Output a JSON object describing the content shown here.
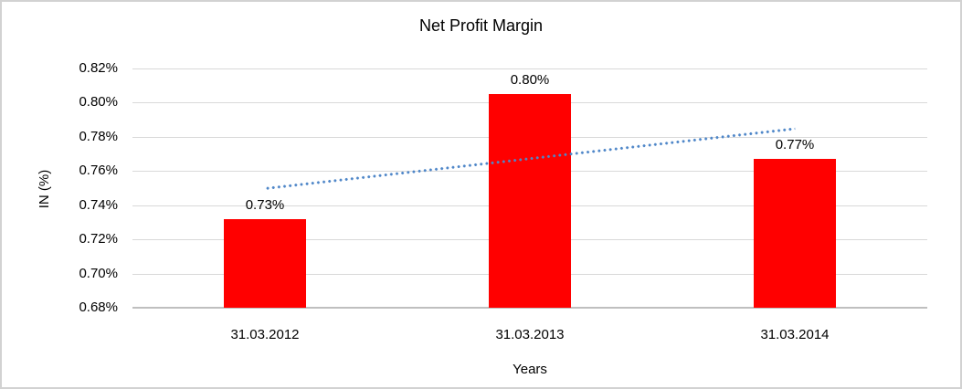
{
  "window": {
    "background_color": "#FFFFFF",
    "border_color": "#D2D2D2"
  },
  "chart_data": {
    "type": "bar",
    "title": "Net Profit Margin",
    "xlabel": "Years",
    "ylabel": "IN (%)",
    "categories": [
      "31.03.2012",
      "31.03.2013",
      "31.03.2014"
    ],
    "values": [
      0.732,
      0.805,
      0.767
    ],
    "data_labels": [
      "0.73%",
      "0.80%",
      "0.77%"
    ],
    "ylim": [
      0.68,
      0.82
    ],
    "yticks": [
      0.82,
      0.8,
      0.78,
      0.76,
      0.74,
      0.72,
      0.7,
      0.68
    ],
    "ytick_labels": [
      "0.82%",
      "0.80%",
      "0.78%",
      "0.76%",
      "0.74%",
      "0.72%",
      "0.70%",
      "0.68%"
    ],
    "grid": true,
    "legend": "none",
    "bar_color": "#FF0000",
    "gridline_color": "#D9D9D9",
    "axis_line_color": "#BFBFBF",
    "text_color": "#000000",
    "trendline": {
      "type": "linear",
      "style": "dotted",
      "color": "#4E86C8",
      "start_value": 0.75,
      "end_value": 0.785
    }
  }
}
